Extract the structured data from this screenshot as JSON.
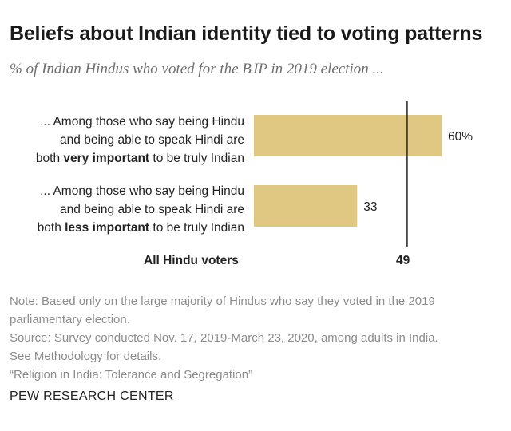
{
  "chart_data": {
    "type": "bar",
    "title": "Beliefs about Indian identity tied to voting patterns",
    "subtitle": "% of Indian Hindus who voted for the BJP in 2019 election ...",
    "categories": [
      {
        "lines": [
          "... Among those who say being Hindu",
          "and being able to speak Hindi are"
        ],
        "last_pre": "both ",
        "last_bold": "very important",
        "last_post": " to be truly Indian"
      },
      {
        "lines": [
          "... Among those who say being Hindu",
          "and being able to speak Hindi are"
        ],
        "last_pre": "both ",
        "last_bold": "less important",
        "last_post": " to be truly Indian"
      }
    ],
    "values": [
      60,
      33
    ],
    "value_labels": [
      "60%",
      "33"
    ],
    "bar_color": "#e0c882",
    "reference_line": {
      "label": "All Hindu voters",
      "value": 49,
      "value_label": "49",
      "color": "#222222"
    },
    "xlim": [
      0,
      70
    ],
    "grid": false
  },
  "footer": {
    "note_line1": "Note: Based only on the large majority of Hindus who say they voted in the 2019",
    "note_line2": "parliamentary election.",
    "source_line1": "Source: Survey conducted Nov. 17, 2019-March 23, 2020, among adults in India.",
    "source_line2": "See Methodology for details.",
    "report": "“Religion in India: Tolerance and Segregation”",
    "brand": "PEW RESEARCH CENTER"
  }
}
